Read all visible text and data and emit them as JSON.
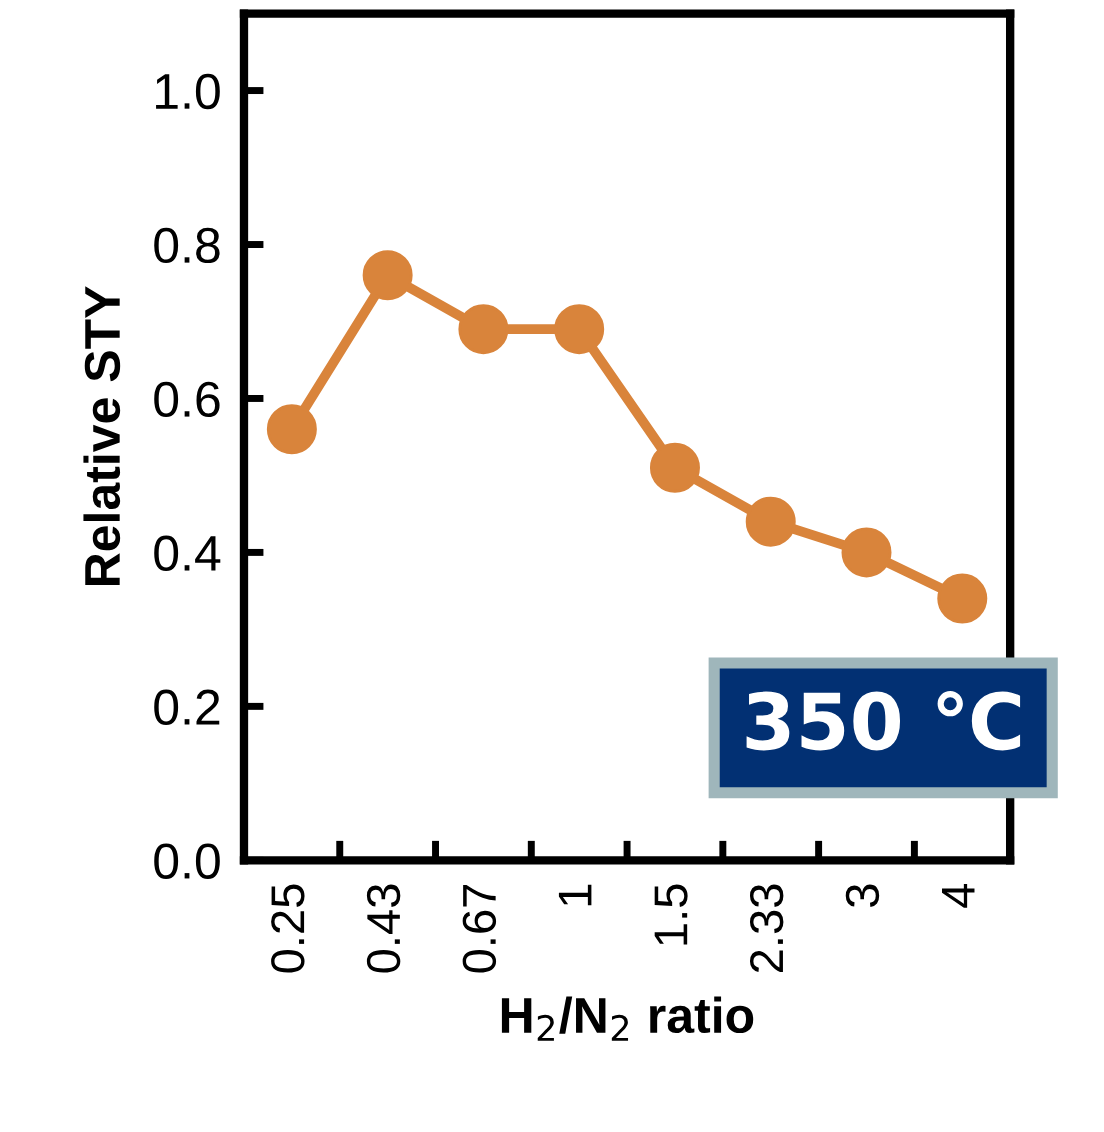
{
  "chart_data": {
    "type": "line",
    "xlabel": "H$_{2}$/N$_{2}$ ratio",
    "ylabel": "Relative STY",
    "categories": [
      "0.25",
      "0.43",
      "0.67",
      "1",
      "1.5",
      "2.33",
      "3",
      "4"
    ],
    "series": [
      {
        "color": "#d9843b",
        "values": [
          0.56,
          0.76,
          0.69,
          0.69,
          0.51,
          0.44,
          0.4,
          0.34
        ]
      }
    ],
    "ylim": [
      0,
      1.1
    ],
    "yticks": [
      {
        "value": 0,
        "label": "0.0"
      },
      {
        "value": 0.2,
        "label": "0.2"
      },
      {
        "value": 0.4,
        "label": "0.4"
      },
      {
        "value": 0.6,
        "label": "0.6"
      },
      {
        "value": 0.8,
        "label": "0.8"
      },
      {
        "value": 1.0,
        "label": "1.0"
      }
    ],
    "annotations": [
      "350 ℃"
    ],
    "marker": "circle",
    "line_style": "solid",
    "grid": false,
    "legend": false
  }
}
